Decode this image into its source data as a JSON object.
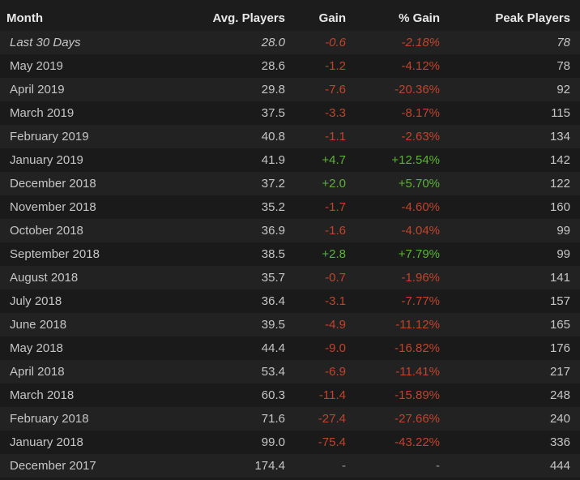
{
  "table": {
    "header": [
      "Month",
      "Avg. Players",
      "Gain",
      "% Gain",
      "Peak Players"
    ],
    "rows": [
      [
        "Last 30 Days",
        "28.0",
        "-0.6",
        "-2.18%",
        "78"
      ],
      [
        "May 2019",
        "28.6",
        "-1.2",
        "-4.12%",
        "78"
      ],
      [
        "April 2019",
        "29.8",
        "-7.6",
        "-20.36%",
        "92"
      ],
      [
        "March 2019",
        "37.5",
        "-3.3",
        "-8.17%",
        "115"
      ],
      [
        "February 2019",
        "40.8",
        "-1.1",
        "-2.63%",
        "134"
      ],
      [
        "January 2019",
        "41.9",
        "+4.7",
        "+12.54%",
        "142"
      ],
      [
        "December 2018",
        "37.2",
        "+2.0",
        "+5.70%",
        "122"
      ],
      [
        "November 2018",
        "35.2",
        "-1.7",
        "-4.60%",
        "160"
      ],
      [
        "October 2018",
        "36.9",
        "-1.6",
        "-4.04%",
        "99"
      ],
      [
        "September 2018",
        "38.5",
        "+2.8",
        "+7.79%",
        "99"
      ],
      [
        "August 2018",
        "35.7",
        "-0.7",
        "-1.96%",
        "141"
      ],
      [
        "July 2018",
        "36.4",
        "-3.1",
        "-7.77%",
        "157"
      ],
      [
        "June 2018",
        "39.5",
        "-4.9",
        "-11.12%",
        "165"
      ],
      [
        "May 2018",
        "44.4",
        "-9.0",
        "-16.82%",
        "176"
      ],
      [
        "April 2018",
        "53.4",
        "-6.9",
        "-11.41%",
        "217"
      ],
      [
        "March 2018",
        "60.3",
        "-11.4",
        "-15.89%",
        "248"
      ],
      [
        "February 2018",
        "71.6",
        "-27.4",
        "-27.66%",
        "240"
      ],
      [
        "January 2018",
        "99.0",
        "-75.4",
        "-43.22%",
        "336"
      ],
      [
        "December 2017",
        "174.4",
        "-",
        "-",
        "444"
      ]
    ]
  }
}
